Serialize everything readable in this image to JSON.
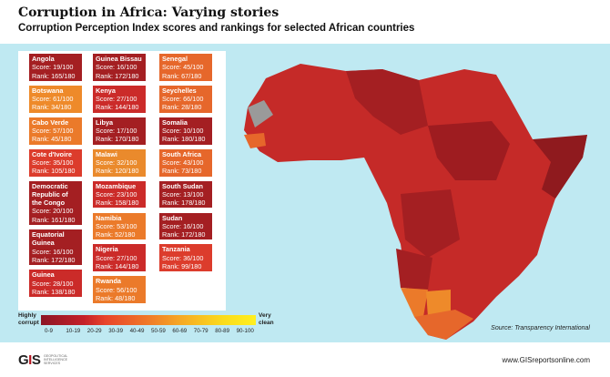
{
  "title": "Corruption in Africa: Varying stories",
  "subtitle": "Corruption Perception Index scores and rankings for selected African countries",
  "countries": [
    {
      "name": "Angola",
      "score": "Score: 19/100",
      "rank": "Rank: 165/180",
      "color": "#a41f22"
    },
    {
      "name": "Botswana",
      "score": "Score: 61/100",
      "rank": "Rank: 34/180",
      "color": "#ee8a2a"
    },
    {
      "name": "Cabo Verde",
      "score": "Score: 57/100",
      "rank": "Rank: 45/180",
      "color": "#eb7a2a"
    },
    {
      "name": "Cote d'Ivoire",
      "score": "Score: 35/100",
      "rank": "Rank: 105/180",
      "color": "#dc3c2c"
    },
    {
      "name": "Democratic Republic of the Congo",
      "score": "Score: 20/100",
      "rank": "Rank: 161/180",
      "color": "#a41f22"
    },
    {
      "name": "Equatorial Guinea",
      "score": "Score: 16/100",
      "rank": "Rank: 172/180",
      "color": "#a41f22"
    },
    {
      "name": "Guinea",
      "score": "Score: 28/100",
      "rank": "Rank: 138/180",
      "color": "#cb2b29"
    },
    {
      "name": "Guinea Bissau",
      "score": "Score: 16/100",
      "rank": "Rank: 172/180",
      "color": "#a41f22"
    },
    {
      "name": "Kenya",
      "score": "Score: 27/100",
      "rank": "Rank: 144/180",
      "color": "#cb2b29"
    },
    {
      "name": "Libya",
      "score": "Score: 17/100",
      "rank": "Rank: 170/180",
      "color": "#a41f22"
    },
    {
      "name": "Malawi",
      "score": "Score: 32/100",
      "rank": "Rank: 120/180",
      "color": "#ea8a2c"
    },
    {
      "name": "Mozambique",
      "score": "Score: 23/100",
      "rank": "Rank: 158/180",
      "color": "#cb2b29"
    },
    {
      "name": "Namibia",
      "score": "Score: 53/100",
      "rank": "Rank: 52/180",
      "color": "#eb7a2a"
    },
    {
      "name": "Nigeria",
      "score": "Score: 27/100",
      "rank": "Rank: 144/180",
      "color": "#cb2b29"
    },
    {
      "name": "Rwanda",
      "score": "Score: 56/100",
      "rank": "Rank: 48/180",
      "color": "#eb7a2a"
    },
    {
      "name": "Senegal",
      "score": "Score: 45/100",
      "rank": "Rank: 67/180",
      "color": "#e6672b"
    },
    {
      "name": "Seychelles",
      "score": "Score: 66/100",
      "rank": "Rank: 28/180",
      "color": "#e6672b"
    },
    {
      "name": "Somalia",
      "score": "Score: 10/100",
      "rank": "Rank: 180/180",
      "color": "#a41f22"
    },
    {
      "name": "South Africa",
      "score": "Score: 43/100",
      "rank": "Rank: 73/180",
      "color": "#e6672b"
    },
    {
      "name": "South Sudan",
      "score": "Score: 13/100",
      "rank": "Rank: 178/180",
      "color": "#a41f22"
    },
    {
      "name": "Sudan",
      "score": "Score: 16/100",
      "rank": "Rank: 172/180",
      "color": "#a41f22"
    },
    {
      "name": "Tanzania",
      "score": "Score: 36/100",
      "rank": "Rank: 99/180",
      "color": "#dc3c2c"
    }
  ],
  "legend": {
    "low": "Highly corrupt",
    "high": "Very clean",
    "ranges": [
      "0-9",
      "10-19",
      "20-29",
      "30-39",
      "40-49",
      "50-59",
      "60-69",
      "70-79",
      "80-89",
      "90-100"
    ]
  },
  "source": "Source: Transparency International",
  "logo": {
    "text": "GIS",
    "subtext": "GEOPOLITICAL INTELLIGENCE SERVICES"
  },
  "url": "www.GISreportsonline.com"
}
